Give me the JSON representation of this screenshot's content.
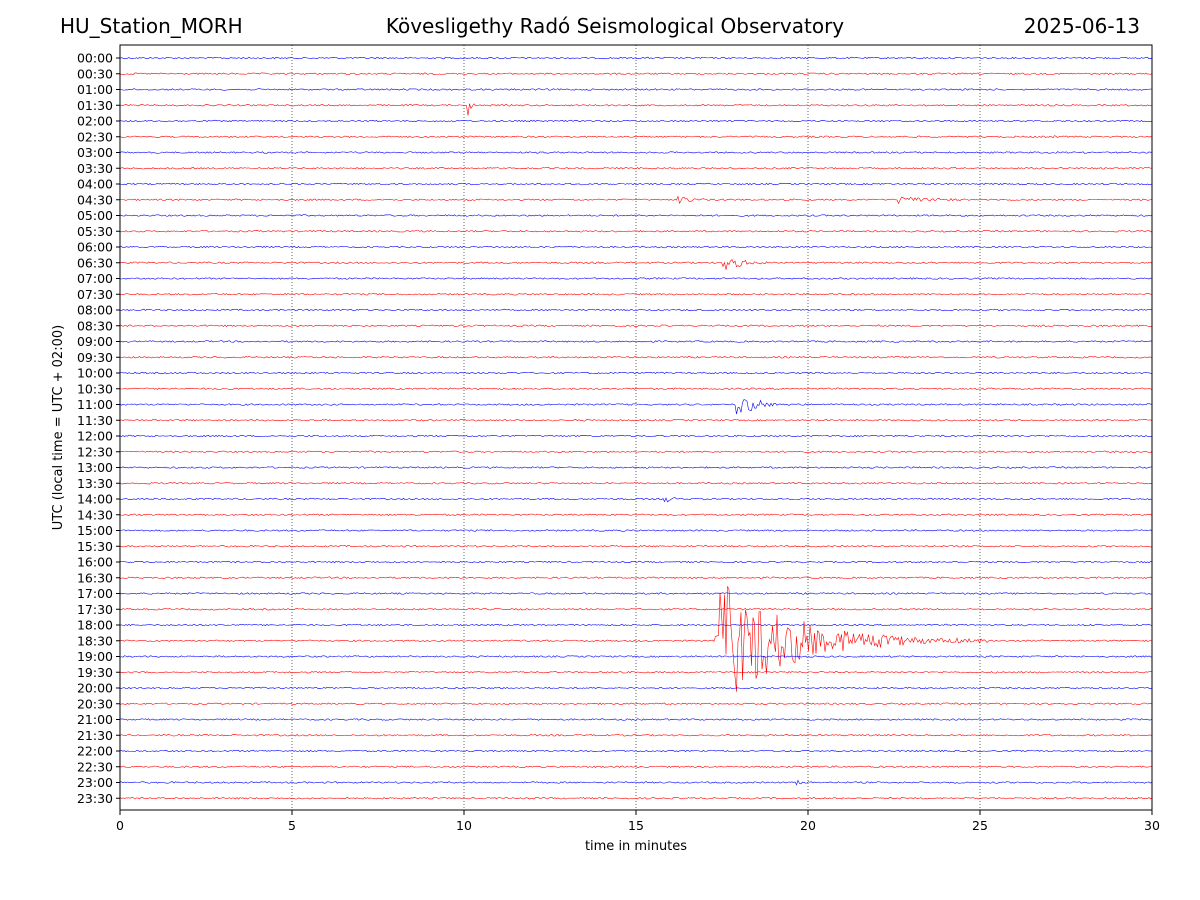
{
  "header": {
    "station": "HU_Station_MORH",
    "title": "Kövesligethy Radó Seismological Observatory",
    "date": "2025-06-13"
  },
  "chart_data": {
    "type": "line",
    "title": "Kövesligethy Radó Seismological Observatory",
    "xlabel": "time in minutes",
    "ylabel": "UTC (local time = UTC + 02:00)",
    "xlim": [
      0,
      30
    ],
    "x_ticks": [
      "0",
      "5",
      "10",
      "15",
      "20",
      "25",
      "30"
    ],
    "x_tick_values": [
      0,
      5,
      10,
      15,
      20,
      25,
      30
    ],
    "grid_x": [
      5,
      10,
      15,
      20,
      25
    ],
    "row_labels": [
      "00:00",
      "00:30",
      "01:00",
      "01:30",
      "02:00",
      "02:30",
      "03:00",
      "03:30",
      "04:00",
      "04:30",
      "05:00",
      "05:30",
      "06:00",
      "06:30",
      "07:00",
      "07:30",
      "08:00",
      "08:30",
      "09:00",
      "09:30",
      "10:00",
      "10:30",
      "11:00",
      "11:30",
      "12:00",
      "12:30",
      "13:00",
      "13:30",
      "14:00",
      "14:30",
      "15:00",
      "15:30",
      "16:00",
      "16:30",
      "17:00",
      "17:30",
      "18:00",
      "18:30",
      "19:00",
      "19:30",
      "20:00",
      "20:30",
      "21:00",
      "21:30",
      "22:00",
      "22:30",
      "23:00",
      "23:30"
    ],
    "trace_colors": [
      "#0000ff",
      "#ff0000"
    ],
    "events": [
      {
        "row": "01:30",
        "start_min": 10.1,
        "duration_min": 0.5,
        "amplitude_rows": 0.8
      },
      {
        "row": "02:30",
        "start_min": 27.1,
        "duration_min": 0.2,
        "amplitude_rows": 0.2
      },
      {
        "row": "04:30",
        "start_min": 16.2,
        "duration_min": 1.5,
        "amplitude_rows": 0.3
      },
      {
        "row": "04:30",
        "start_min": 22.5,
        "duration_min": 3.5,
        "amplitude_rows": 0.3
      },
      {
        "row": "06:30",
        "start_min": 17.5,
        "duration_min": 2.0,
        "amplitude_rows": 0.6
      },
      {
        "row": "11:00",
        "start_min": 17.9,
        "duration_min": 1.8,
        "amplitude_rows": 1.1
      },
      {
        "row": "14:00",
        "start_min": 15.8,
        "duration_min": 0.8,
        "amplitude_rows": 0.3
      },
      {
        "row": "18:30",
        "start_min": 17.3,
        "duration_min": 8.0,
        "amplitude_rows": 4.5
      },
      {
        "row": "23:00",
        "start_min": 19.6,
        "duration_min": 0.5,
        "amplitude_rows": 0.4
      }
    ]
  }
}
